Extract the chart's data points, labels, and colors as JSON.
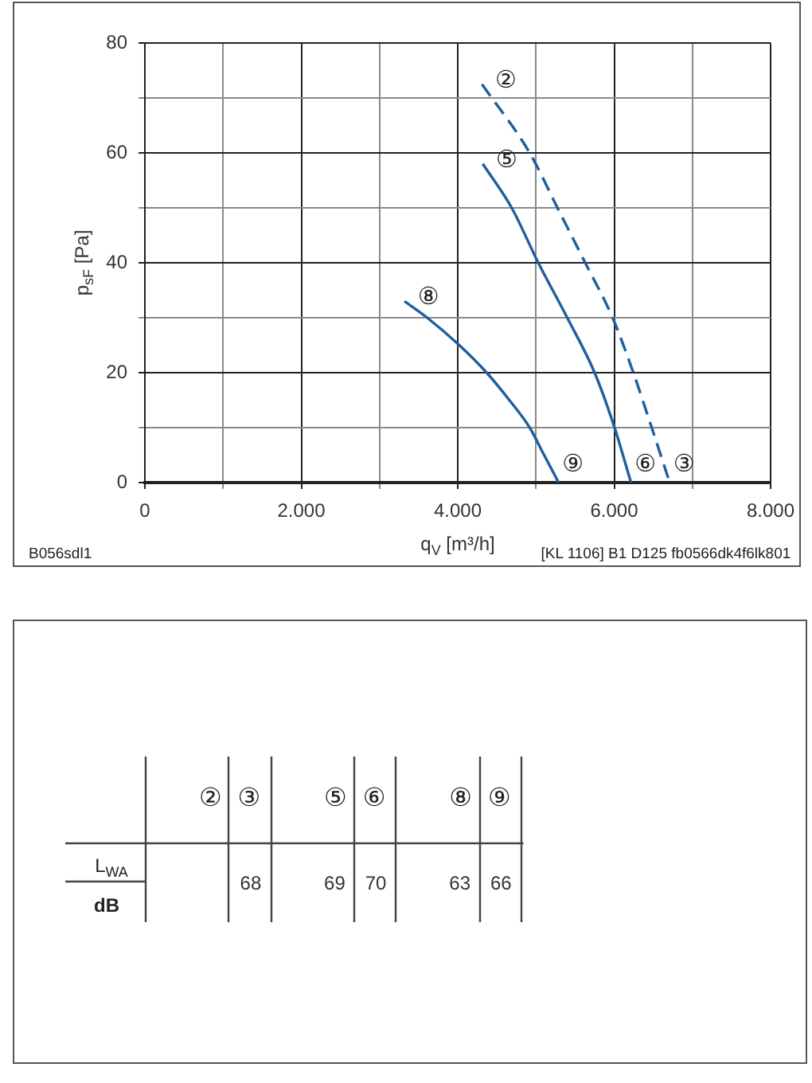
{
  "chart_data": [
    {
      "type": "line",
      "xlabel": "q$_{V}$ [m³/h]",
      "ylabel": "p$_{sF}$ [Pa]",
      "series": [
        {
          "color": "#1f5f9e",
          "line_style": "dashed",
          "x": [
            4310,
            4920,
            5275,
            5630,
            5980,
            6245,
            6480,
            6710
          ],
          "values": [
            72.5,
            60,
            50,
            40,
            30,
            20,
            10,
            0
          ]
        },
        {
          "color": "#1f5f9e",
          "x": [
            4320,
            4690,
            5030,
            5400,
            5750,
            6005,
            6215
          ],
          "values": [
            58,
            50,
            40,
            30,
            20,
            10,
            0
          ]
        },
        {
          "color": "#1f5f9e",
          "x": [
            3320,
            3610,
            4020,
            4370,
            4660,
            4920,
            5105,
            5290
          ],
          "values": [
            33,
            30,
            25,
            20,
            15,
            10,
            5,
            0
          ]
        }
      ],
      "xlim": [
        0,
        8000
      ],
      "ylim": [
        0,
        80
      ],
      "xticks": [
        0,
        {
          "value": 1000,
          "label": null
        },
        {
          "value": 2000,
          "label": "2.000"
        },
        {
          "value": 3000,
          "label": null
        },
        {
          "value": 4000,
          "label": "4.000"
        },
        {
          "value": 5000,
          "label": null
        },
        {
          "value": 6000,
          "label": "6.000"
        },
        {
          "value": 7000,
          "label": null
        },
        {
          "value": 8000,
          "label": "8.000"
        }
      ],
      "yticks": [
        0,
        {
          "value": 10,
          "label": null
        },
        20,
        {
          "value": 30,
          "label": null
        },
        40,
        {
          "value": 50,
          "label": null
        },
        60,
        {
          "value": 70,
          "label": null
        },
        80
      ],
      "grid": true,
      "annotations": [
        {
          "text": "②",
          "x": 4310,
          "y": 72.5
        },
        {
          "text": "③",
          "x": 6710,
          "y": 0
        },
        {
          "text": "⑤",
          "x": 4320,
          "y": 58
        },
        {
          "text": "⑥",
          "x": 6215,
          "y": 0
        },
        {
          "text": "⑧",
          "x": 3320,
          "y": 33
        },
        {
          "text": "⑨",
          "x": 5290,
          "y": 0
        },
        "B056sdl1",
        "[KL 1106] B1 D125 fb0566dk4f6lk801"
      ]
    },
    {
      "type": "other",
      "categories": [
        "②",
        "③",
        "⑤",
        "⑥",
        "⑧",
        "⑨"
      ],
      "values": [
        null,
        68,
        69,
        70,
        63,
        66
      ],
      "data_labels": true,
      "ylabel": "L$_{WA}$",
      "annotations": [
        "dB"
      ]
    }
  ]
}
